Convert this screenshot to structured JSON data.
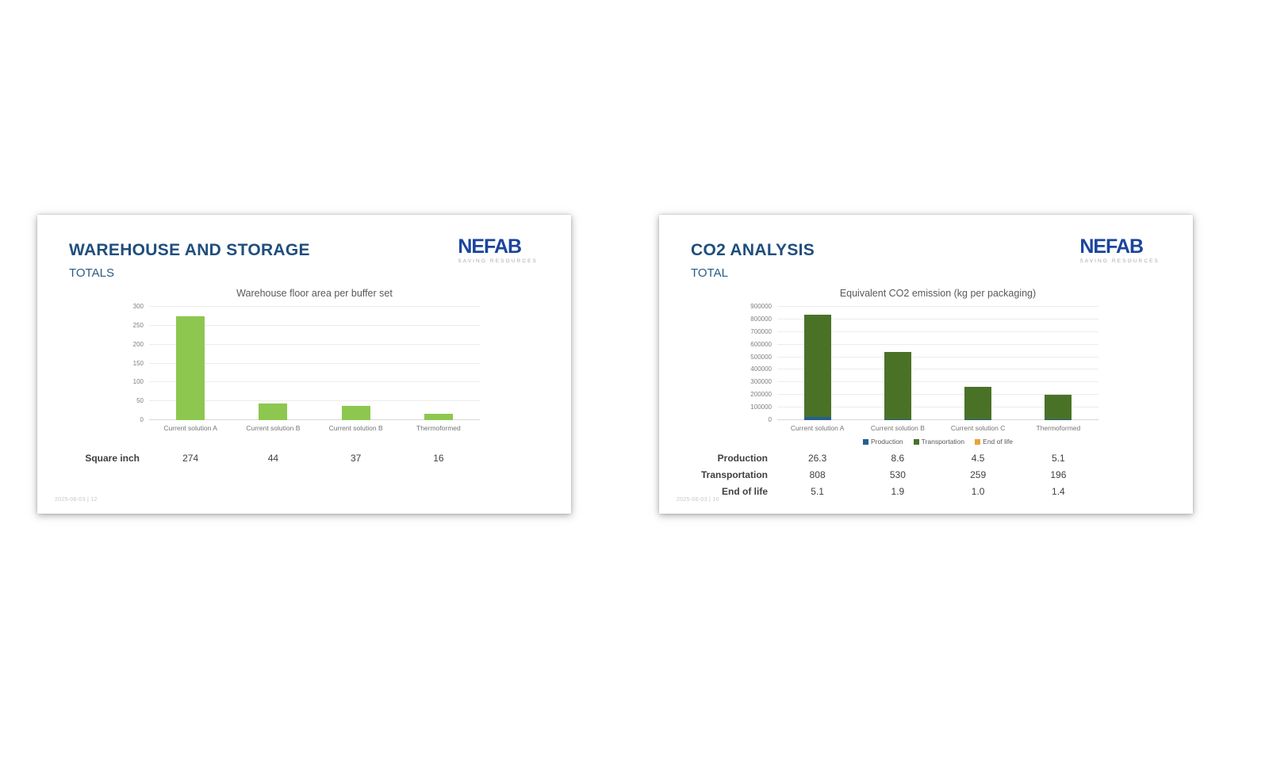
{
  "slides": [
    {
      "title": "WAREHOUSE AND STORAGE",
      "subtitle": "TOTALS",
      "logo": {
        "text": "NEFAB",
        "tagline": "SAVING RESOURCES"
      },
      "footer": "2025-06-03  |  12",
      "table": {
        "rows": [
          {
            "label": "Square inch",
            "values": [
              "274",
              "44",
              "37",
              "16"
            ]
          }
        ]
      }
    },
    {
      "title": "CO2 ANALYSIS",
      "subtitle": "TOTAL",
      "logo": {
        "text": "NEFAB",
        "tagline": "SAVING RESOURCES"
      },
      "footer": "2025-06-03  |  10",
      "table": {
        "rows": [
          {
            "label": "Production",
            "values": [
              "26.3",
              "8.6",
              "4.5",
              "5.1"
            ]
          },
          {
            "label": "Transportation",
            "values": [
              "808",
              "530",
              "259",
              "196"
            ]
          },
          {
            "label": "End of life",
            "values": [
              "5.1",
              "1.9",
              "1.0",
              "1.4"
            ]
          }
        ]
      }
    }
  ],
  "chart_data": [
    {
      "type": "bar",
      "title": "Warehouse floor area per buffer set",
      "categories": [
        "Current solution A",
        "Current solution B",
        "Current solution B",
        "Thermoformed"
      ],
      "values": [
        274,
        44,
        37,
        16
      ],
      "bar_color": "#8dc750",
      "xlabel": "",
      "ylabel": "",
      "ylim": [
        0,
        300
      ],
      "yticks": [
        0,
        50,
        100,
        150,
        200,
        250,
        300
      ],
      "ytick_labels": [
        "0",
        "50",
        "100",
        "150",
        "200",
        "250",
        "300"
      ],
      "grid": true,
      "legend_position": null
    },
    {
      "type": "bar",
      "stacked": true,
      "title": "Equivalent CO2 emission (kg per packaging)",
      "categories": [
        "Current solution A",
        "Current solution B",
        "Current solution C",
        "Thermoformed"
      ],
      "series": [
        {
          "name": "Production",
          "color": "#265f8f",
          "values": [
            26300,
            8600,
            4500,
            5100
          ]
        },
        {
          "name": "Transportation",
          "color": "#4a7227",
          "values": [
            808000,
            530000,
            259000,
            196000
          ]
        },
        {
          "name": "End of life",
          "color": "#e8a33d",
          "values": [
            5100,
            1900,
            1000,
            1400
          ]
        }
      ],
      "xlabel": "",
      "ylabel": "",
      "ylim": [
        0,
        900000
      ],
      "yticks": [
        0,
        100000,
        200000,
        300000,
        400000,
        500000,
        600000,
        700000,
        800000,
        900000
      ],
      "ytick_labels": [
        "0",
        "100000",
        "200000",
        "300000",
        "400000",
        "500000",
        "600000",
        "700000",
        "800000",
        "900000"
      ],
      "grid": true,
      "legend_position": "bottom"
    }
  ]
}
